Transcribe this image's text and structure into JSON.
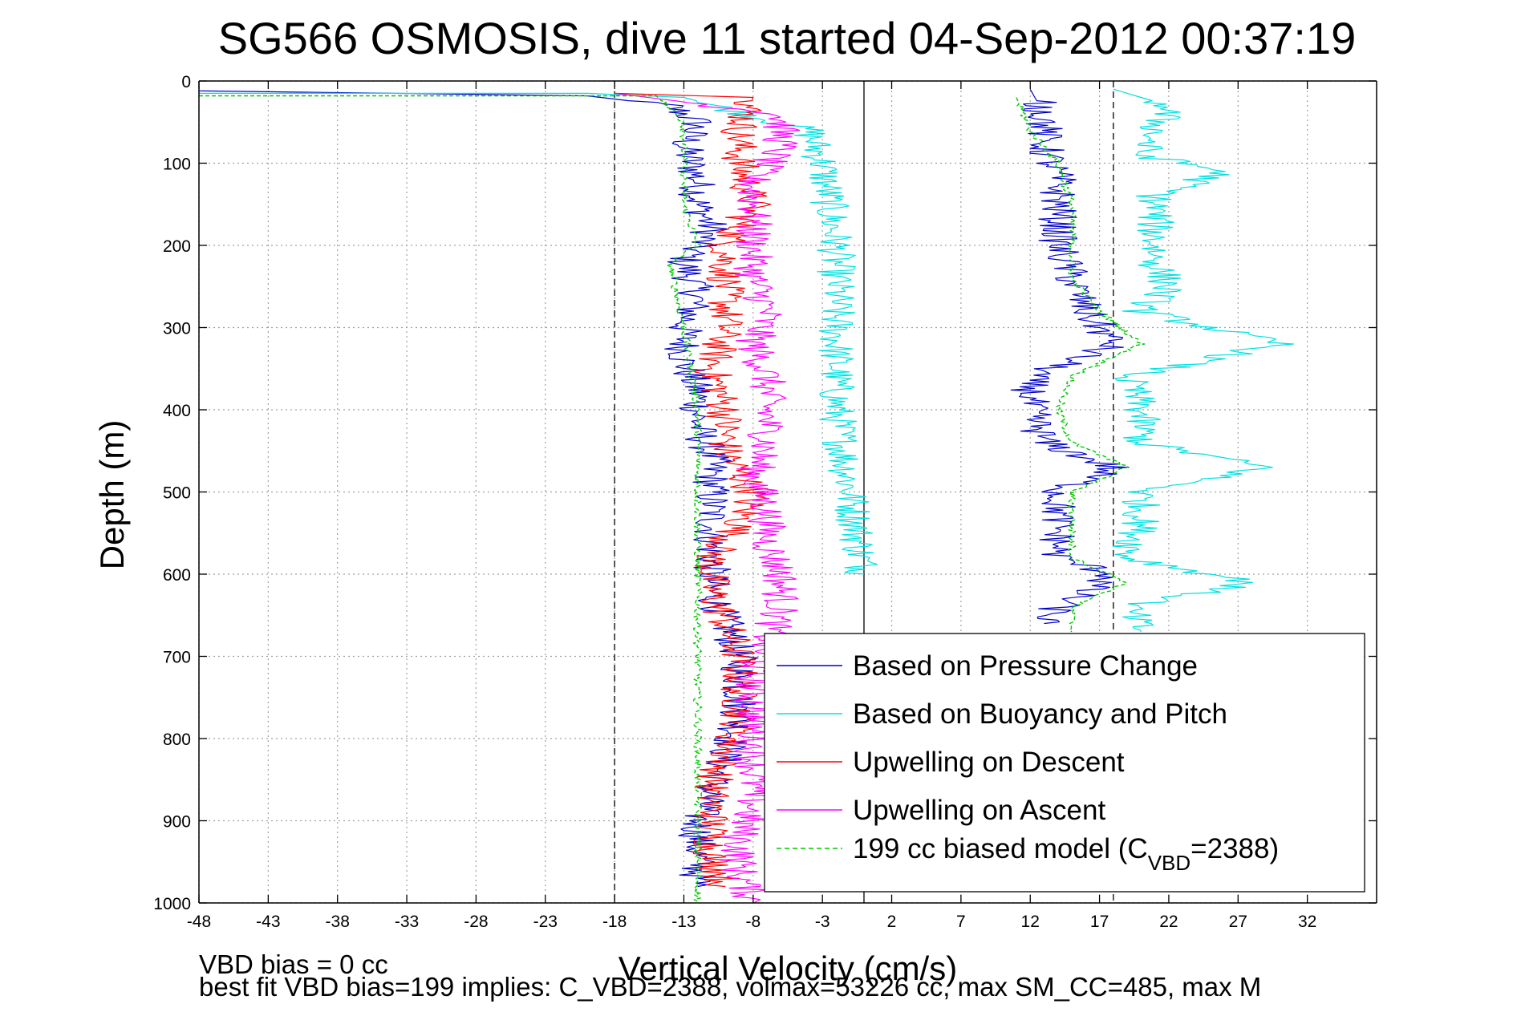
{
  "chart_data": {
    "type": "line",
    "title": "SG566 OSMOSIS, dive 11 started 04-Sep-2012 00:37:19",
    "xlabel": "Vertical Velocity (cm/s)",
    "ylabel": "Depth (m)",
    "xlim": [
      -48,
      37
    ],
    "ylim": [
      0,
      1000
    ],
    "y_reversed": true,
    "x_ticks": [
      "-48",
      "-43",
      "-38",
      "-33",
      "-28",
      "-23",
      "-18",
      "-13",
      "-8",
      "-3",
      "2",
      "7",
      "12",
      "17",
      "22",
      "27",
      "32"
    ],
    "y_ticks": [
      "0",
      "100",
      "200",
      "300",
      "400",
      "500",
      "600",
      "700",
      "800",
      "900",
      "1000"
    ],
    "grid": true,
    "legend_position": "bottom-right",
    "reference_lines": [
      {
        "x": -18,
        "style": "dashed"
      },
      {
        "x": 0,
        "style": "solid"
      },
      {
        "x": 18,
        "style": "dashed"
      }
    ],
    "series": [
      {
        "name": "Based on Pressure Change",
        "color": "#0000c8",
        "group": "descent",
        "points": [
          [
            -48,
            12
          ],
          [
            -20,
            18
          ],
          [
            -14,
            30
          ],
          [
            -12,
            50
          ],
          [
            -13,
            80
          ],
          [
            -12,
            120
          ],
          [
            -12,
            150
          ],
          [
            -11,
            180
          ],
          [
            -13,
            220
          ],
          [
            -12,
            260
          ],
          [
            -13,
            300
          ],
          [
            -13,
            340
          ],
          [
            -12,
            380
          ],
          [
            -12,
            420
          ],
          [
            -11,
            460
          ],
          [
            -11,
            500
          ],
          [
            -11,
            540
          ],
          [
            -11,
            580
          ],
          [
            -11,
            620
          ],
          [
            -10,
            660
          ],
          [
            -9,
            700
          ],
          [
            -9,
            740
          ],
          [
            -9,
            780
          ],
          [
            -10,
            820
          ],
          [
            -11,
            860
          ],
          [
            -12,
            900
          ],
          [
            -12,
            940
          ],
          [
            -12,
            980
          ]
        ]
      },
      {
        "name": "Based on Buoyancy and Pitch",
        "color": "#00e0e0",
        "group": "descent",
        "points": [
          [
            -48,
            15
          ],
          [
            -20,
            15
          ],
          [
            -13,
            20
          ],
          [
            -4,
            60
          ],
          [
            -3,
            100
          ],
          [
            -2,
            200
          ],
          [
            -2,
            300
          ],
          [
            -2,
            400
          ],
          [
            -1,
            500
          ],
          [
            0,
            600
          ]
        ]
      },
      {
        "name": "Upwelling on Descent",
        "color": "#ff0000",
        "group": "descent",
        "points": [
          [
            -18,
            15
          ],
          [
            -8,
            20
          ],
          [
            -9,
            60
          ],
          [
            -9,
            100
          ],
          [
            -8,
            150
          ],
          [
            -10,
            200
          ],
          [
            -10,
            250
          ],
          [
            -10,
            300
          ],
          [
            -11,
            350
          ],
          [
            -10,
            400
          ],
          [
            -10,
            450
          ],
          [
            -8,
            500
          ],
          [
            -9,
            540
          ],
          [
            -11,
            580
          ],
          [
            -11,
            620
          ],
          [
            -10,
            660
          ],
          [
            -9,
            700
          ],
          [
            -9,
            740
          ],
          [
            -9,
            780
          ],
          [
            -10,
            820
          ],
          [
            -11,
            860
          ],
          [
            -11,
            900
          ],
          [
            -11,
            940
          ],
          [
            -10,
            980
          ]
        ]
      },
      {
        "name": "Upwelling on Ascent",
        "color": "#ff00ff",
        "group": "descent",
        "points": [
          [
            -18,
            15
          ],
          [
            -6,
            40
          ],
          [
            -6,
            80
          ],
          [
            -8,
            120
          ],
          [
            -8,
            160
          ],
          [
            -8,
            200
          ],
          [
            -8,
            240
          ],
          [
            -7,
            280
          ],
          [
            -8,
            320
          ],
          [
            -7,
            360
          ],
          [
            -7,
            400
          ],
          [
            -7,
            440
          ],
          [
            -8,
            480
          ],
          [
            -7,
            520
          ],
          [
            -7,
            560
          ],
          [
            -6,
            600
          ],
          [
            -6,
            640
          ],
          [
            -7,
            680
          ],
          [
            -8,
            720
          ],
          [
            -8,
            760
          ],
          [
            -8,
            800
          ],
          [
            -8,
            840
          ],
          [
            -8,
            880
          ],
          [
            -9,
            920
          ],
          [
            -9,
            960
          ],
          [
            -8,
            1000
          ]
        ]
      },
      {
        "name": "199 cc biased model (C_VBD=2388)",
        "color": "#00c800",
        "group": "descent",
        "dashed": true,
        "points": [
          [
            -48,
            18
          ],
          [
            -15,
            18
          ],
          [
            -13,
            50
          ],
          [
            -13,
            100
          ],
          [
            -13,
            150
          ],
          [
            -12,
            200
          ],
          [
            -14,
            220
          ],
          [
            -13,
            300
          ],
          [
            -12,
            400
          ],
          [
            -12,
            500
          ],
          [
            -12,
            540
          ],
          [
            -12,
            600
          ],
          [
            -12,
            700
          ],
          [
            -12,
            750
          ],
          [
            -12,
            800
          ],
          [
            -12,
            900
          ],
          [
            -12,
            1000
          ]
        ]
      },
      {
        "name": "Based on Pressure Change",
        "color": "#0000c8",
        "group": "ascent",
        "points": [
          [
            12,
            10
          ],
          [
            13,
            40
          ],
          [
            13,
            80
          ],
          [
            14,
            120
          ],
          [
            14,
            160
          ],
          [
            14,
            200
          ],
          [
            15,
            240
          ],
          [
            16,
            280
          ],
          [
            18,
            320
          ],
          [
            12,
            360
          ],
          [
            12,
            400
          ],
          [
            13,
            440
          ],
          [
            18,
            470
          ],
          [
            14,
            500
          ],
          [
            14,
            540
          ],
          [
            14,
            580
          ],
          [
            18,
            600
          ],
          [
            14,
            640
          ],
          [
            13,
            660
          ]
        ]
      },
      {
        "name": "Based on Buoyancy and Pitch",
        "color": "#00e0e0",
        "group": "ascent",
        "points": [
          [
            18,
            10
          ],
          [
            22,
            30
          ],
          [
            21,
            60
          ],
          [
            20,
            90
          ],
          [
            26,
            110
          ],
          [
            21,
            140
          ],
          [
            21,
            180
          ],
          [
            21,
            220
          ],
          [
            22,
            250
          ],
          [
            20,
            280
          ],
          [
            30,
            320
          ],
          [
            19,
            360
          ],
          [
            20,
            400
          ],
          [
            20,
            440
          ],
          [
            29,
            470
          ],
          [
            20,
            500
          ],
          [
            20,
            540
          ],
          [
            19,
            580
          ],
          [
            28,
            610
          ],
          [
            19,
            640
          ],
          [
            20,
            670
          ]
        ]
      },
      {
        "name": "199 cc biased model (C_VBD=2388)",
        "color": "#00c800",
        "group": "ascent",
        "dashed": true,
        "points": [
          [
            11,
            20
          ],
          [
            12,
            60
          ],
          [
            14,
            100
          ],
          [
            15,
            150
          ],
          [
            15,
            200
          ],
          [
            15,
            240
          ],
          [
            17,
            280
          ],
          [
            20,
            320
          ],
          [
            15,
            360
          ],
          [
            14,
            400
          ],
          [
            15,
            440
          ],
          [
            19,
            470
          ],
          [
            15,
            500
          ],
          [
            15,
            540
          ],
          [
            15,
            580
          ],
          [
            19,
            610
          ],
          [
            15,
            640
          ],
          [
            15,
            670
          ]
        ]
      }
    ]
  },
  "footer": {
    "line1": "VBD bias = 0 cc",
    "line2": "best fit VBD bias=199 implies: C_VBD=2388, volmax=53226 cc, max SM_CC=485, max M"
  },
  "legend": [
    {
      "label": "Based on Pressure Change",
      "color": "#0000c8",
      "dashed": false
    },
    {
      "label": "Based on Buoyancy and Pitch",
      "color": "#00e0e0",
      "dashed": false
    },
    {
      "label": "Upwelling on Descent",
      "color": "#ff0000",
      "dashed": false
    },
    {
      "label": "Upwelling on Ascent",
      "color": "#ff00ff",
      "dashed": false
    },
    {
      "label": "199 cc biased model (C",
      "sub": "VBD",
      "tail": "=2388)",
      "color": "#00c800",
      "dashed": true
    }
  ]
}
